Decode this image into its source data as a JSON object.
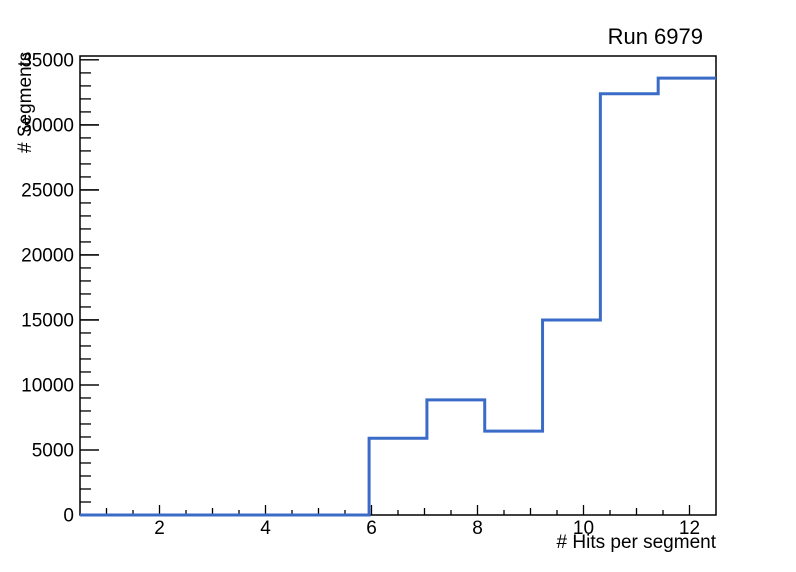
{
  "page": {
    "background_color": "#ffffff"
  },
  "chart_data": {
    "type": "step-histogram",
    "title": "Run 6979",
    "xlabel": "# Hits per segment",
    "ylabel": "# Segments",
    "xlim": [
      0.5,
      12.5
    ],
    "ylim": [
      0,
      35300
    ],
    "nbins": 11,
    "bin_edges": [
      0.5,
      1.5909,
      2.6818,
      3.7727,
      4.8636,
      5.9545,
      7.0455,
      8.1364,
      9.2273,
      10.3182,
      11.4091,
      12.5
    ],
    "values": [
      0,
      0,
      0,
      0,
      0,
      5900,
      8850,
      6450,
      15000,
      32400,
      33600
    ],
    "x_major_ticks": [
      2,
      4,
      6,
      8,
      10,
      12
    ],
    "x_major_tick_labels": [
      "2",
      "4",
      "6",
      "8",
      "10",
      "12"
    ],
    "x_minor_tick_step": 0.5,
    "y_major_ticks": [
      0,
      5000,
      10000,
      15000,
      20000,
      25000,
      30000,
      35000
    ],
    "y_major_tick_labels": [
      "0",
      "5000",
      "10000",
      "15000",
      "20000",
      "25000",
      "30000",
      "35000"
    ],
    "y_minor_tick_step": 1000,
    "grid": false,
    "legend_position": "none",
    "line_color": "#3a6bc6",
    "axis_color": "#000000",
    "background_color": "#ffffff"
  }
}
